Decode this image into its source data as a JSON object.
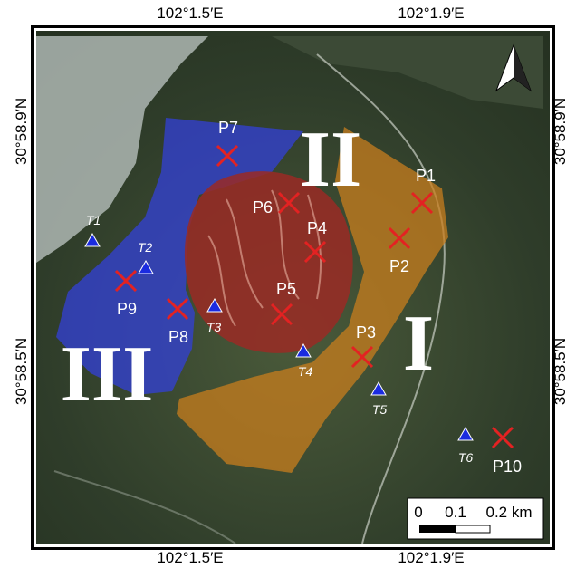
{
  "map": {
    "lon_labels": [
      "102°1.5′E",
      "102°1.9′E"
    ],
    "lat_labels": [
      "30°58.9′N",
      "30°58.5′N"
    ],
    "zones": [
      "I",
      "II",
      "III"
    ],
    "points": [
      "P1",
      "P2",
      "P3",
      "P4",
      "P5",
      "P6",
      "P7",
      "P8",
      "P9",
      "P10"
    ],
    "stations": [
      "T1",
      "T2",
      "T3",
      "T4",
      "T5",
      "T6"
    ],
    "scale_bar": [
      "0",
      "0.1",
      "0.2 km"
    ]
  }
}
